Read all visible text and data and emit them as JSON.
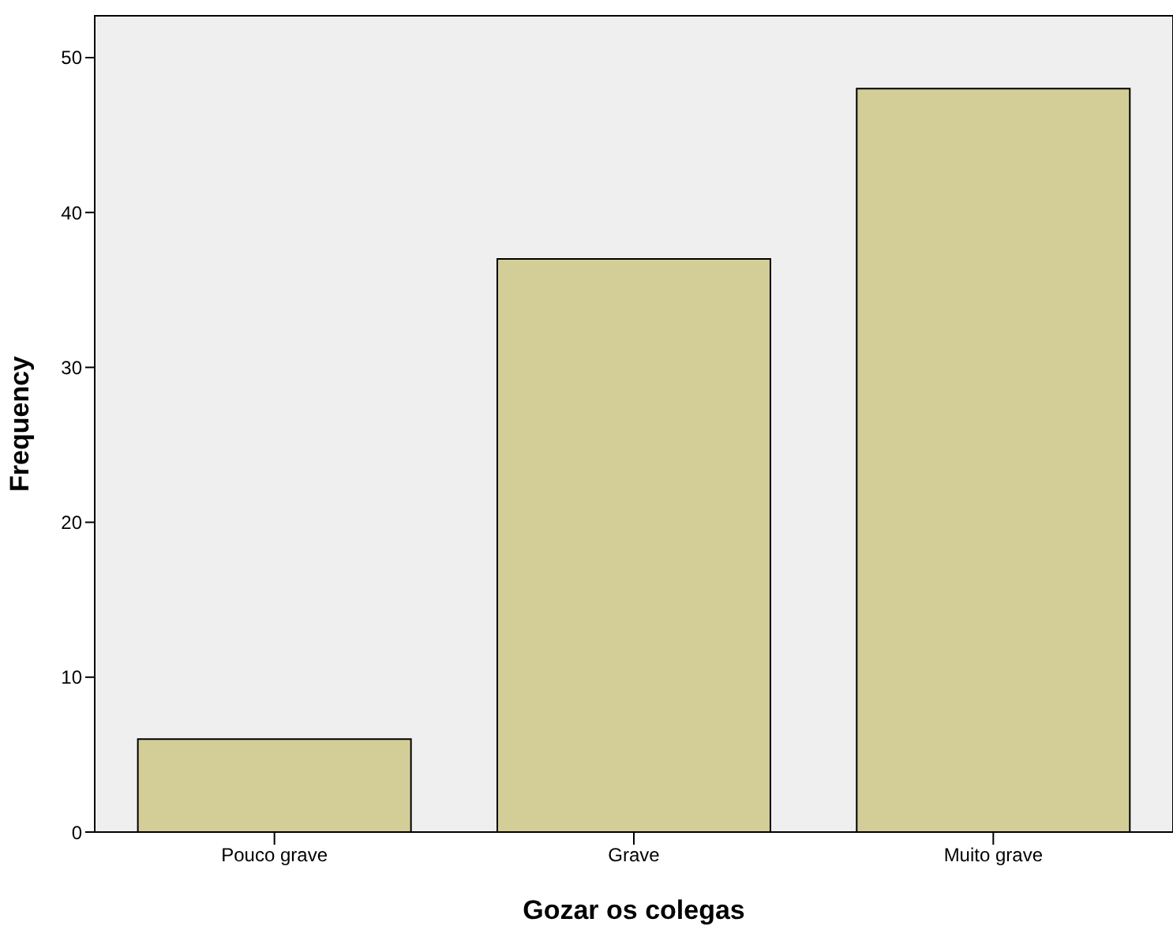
{
  "chart_data": {
    "type": "bar",
    "xlabel": "Gozar os colegas",
    "ylabel": "Frequency",
    "categories": [
      "Pouco grave",
      "Grave",
      "Muito grave"
    ],
    "values": [
      6,
      37,
      48
    ],
    "color": "#d3ce97",
    "ylim": [
      0,
      52.7
    ],
    "yticks": [
      0,
      10,
      20,
      30,
      40,
      50
    ]
  }
}
